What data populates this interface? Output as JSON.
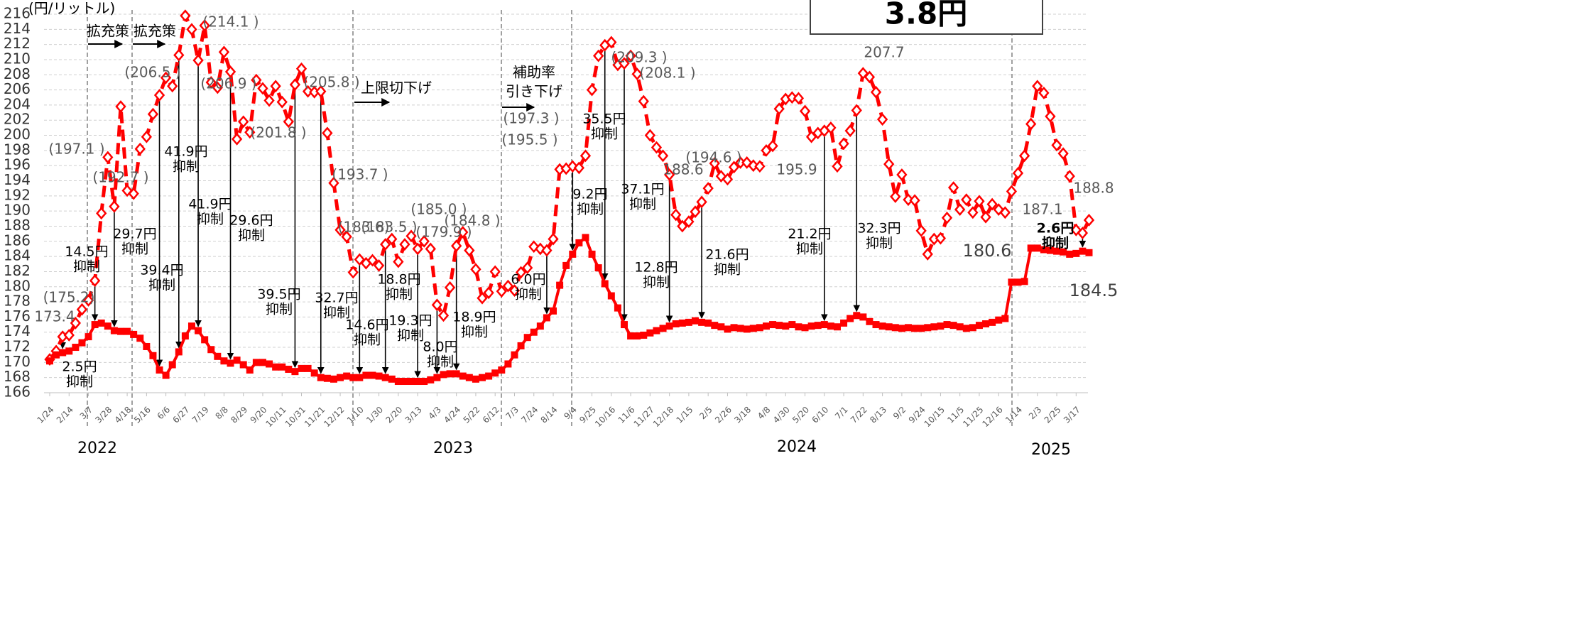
{
  "chart_data": {
    "type": "line",
    "y_label": "(円/リットル)",
    "headline": "3.8円",
    "ylim": [
      166,
      216
    ],
    "yticks": [
      166,
      168,
      170,
      172,
      174,
      176,
      178,
      180,
      182,
      184,
      186,
      188,
      190,
      192,
      194,
      196,
      198,
      200,
      202,
      204,
      206,
      208,
      210,
      212,
      214,
      216
    ],
    "grid": true,
    "categories": [
      "1/24",
      null,
      null,
      "2/14",
      null,
      null,
      "3/7",
      null,
      null,
      "3/28",
      null,
      null,
      "4/18",
      null,
      null,
      "5/16",
      null,
      null,
      "6/6",
      null,
      null,
      "6/27",
      null,
      null,
      "7/19",
      null,
      null,
      "8/8",
      null,
      null,
      "8/29",
      null,
      null,
      "9/20",
      null,
      null,
      "10/11",
      null,
      null,
      "10/31",
      null,
      null,
      "11/21",
      null,
      null,
      "12/12",
      null,
      null,
      "1/10",
      null,
      null,
      "1/30",
      null,
      null,
      "2/20",
      null,
      null,
      "3/13",
      null,
      null,
      "4/3",
      null,
      null,
      "4/24",
      null,
      null,
      "5/22",
      null,
      null,
      "6/12",
      null,
      null,
      "7/3",
      null,
      null,
      "7/24",
      null,
      null,
      "8/14",
      null,
      null,
      "9/4",
      null,
      null,
      "9/25",
      null,
      null,
      "10/16",
      null,
      null,
      "11/6",
      null,
      null,
      "11/27",
      null,
      null,
      "12/18",
      null,
      null,
      "1/15",
      null,
      null,
      "2/5",
      null,
      null,
      "2/26",
      null,
      null,
      "3/18",
      null,
      null,
      "4/8",
      null,
      null,
      "4/30",
      null,
      null,
      "5/20",
      null,
      null,
      "6/10",
      null,
      null,
      "7/1",
      null,
      null,
      "7/22",
      null,
      null,
      "8/13",
      null,
      null,
      "9/2",
      null,
      null,
      "9/24",
      null,
      null,
      "10/15",
      null,
      null,
      "11/5",
      null,
      null,
      "11/25",
      null,
      null,
      "12/16",
      null,
      null,
      "1/14",
      null,
      null,
      "2/3",
      null,
      null,
      "2/25",
      null,
      null,
      "3/17",
      null,
      null
    ],
    "year_labels": [
      "2022",
      "2023",
      "2024",
      "2025"
    ],
    "series": [
      {
        "color": "#ff0000",
        "marker": "diamond",
        "dashed": true,
        "values": [
          170.4,
          171.5,
          173.4,
          173.6,
          175.2,
          177.0,
          178.2,
          180.8,
          189.7,
          197.1,
          190.6,
          203.8,
          192.7,
          192.3,
          198.2,
          199.8,
          202.8,
          205.3,
          207.6,
          206.5,
          210.6,
          215.8,
          214.0,
          209.9,
          214.5,
          207.0,
          206.3,
          211.0,
          208.4,
          199.5,
          201.8,
          200.4,
          207.3,
          206.2,
          204.6,
          206.5,
          204.4,
          201.8,
          206.7,
          208.8,
          205.8,
          205.7,
          205.8,
          200.3,
          193.7,
          187.5,
          186.6,
          181.9,
          183.6,
          183.1,
          183.5,
          182.8,
          185.6,
          186.3,
          183.3,
          185.6,
          186.7,
          185.0,
          186.0,
          185.0,
          177.6,
          176.2,
          179.9,
          185.4,
          187.2,
          184.8,
          182.3,
          178.5,
          179.2,
          182.0,
          179.4,
          180.1,
          179.5,
          181.9,
          182.5,
          185.3,
          185.0,
          184.8,
          186.3,
          195.5,
          195.6,
          195.9,
          195.7,
          197.3,
          206.0,
          210.5,
          211.9,
          212.3,
          209.3,
          209.5,
          210.5,
          208.1,
          204.5,
          200.0,
          198.4,
          197.3,
          194.8,
          189.5,
          188.0,
          188.6,
          189.9,
          191.2,
          193.0,
          196.3,
          194.6,
          194.2,
          195.8,
          196.4,
          196.4,
          196.0,
          195.9,
          198.0,
          198.6,
          203.5,
          204.8,
          205.0,
          204.9,
          203.2,
          199.8,
          200.3,
          200.6,
          201.0,
          195.9,
          198.9,
          200.6,
          203.3,
          208.2,
          207.7,
          205.7,
          202.1,
          196.2,
          191.9,
          194.8,
          191.5,
          191.4,
          187.4,
          184.3,
          186.3,
          186.4,
          189.1,
          193.1,
          190.2,
          191.5,
          189.8,
          191.3,
          189.2,
          190.9,
          190.2,
          189.8,
          192.6,
          195.0,
          197.3,
          201.5,
          206.5,
          205.6,
          202.5,
          198.7,
          197.6,
          194.6,
          187.5,
          187.1,
          188.8
        ]
      },
      {
        "color": "#ff0000",
        "marker": "square",
        "dashed": false,
        "values": [
          170.2,
          171.0,
          171.3,
          171.5,
          172.0,
          172.6,
          173.4,
          175.0,
          175.2,
          174.8,
          174.2,
          174.1,
          174.1,
          173.7,
          173.2,
          172.1,
          170.9,
          169.0,
          168.3,
          169.7,
          171.4,
          173.5,
          174.8,
          174.2,
          173.0,
          171.7,
          170.8,
          170.2,
          169.9,
          170.3,
          169.7,
          169.0,
          170.0,
          170.0,
          169.8,
          169.4,
          169.4,
          169.1,
          168.8,
          169.2,
          169.2,
          168.6,
          168.0,
          167.9,
          167.8,
          168.0,
          168.2,
          168.0,
          168.0,
          168.3,
          168.3,
          168.2,
          168.0,
          167.8,
          167.5,
          167.5,
          167.5,
          167.5,
          167.5,
          167.7,
          168.0,
          168.4,
          168.5,
          168.5,
          168.2,
          168.0,
          167.8,
          168.0,
          168.2,
          168.6,
          169.0,
          169.8,
          171.0,
          172.2,
          173.3,
          174.0,
          174.8,
          175.9,
          176.8,
          180.2,
          182.8,
          184.3,
          185.8,
          186.5,
          184.3,
          182.5,
          180.4,
          178.8,
          177.2,
          175.0,
          173.5,
          173.5,
          173.6,
          173.9,
          174.2,
          174.5,
          174.8,
          175.1,
          175.2,
          175.3,
          175.5,
          175.3,
          175.2,
          174.9,
          174.7,
          174.4,
          174.6,
          174.5,
          174.4,
          174.5,
          174.6,
          174.8,
          175.0,
          174.9,
          174.8,
          175.0,
          174.7,
          174.6,
          174.8,
          174.9,
          175.0,
          174.8,
          174.7,
          175.2,
          175.8,
          176.2,
          176.0,
          175.4,
          175.0,
          174.8,
          174.7,
          174.6,
          174.5,
          174.6,
          174.5,
          174.5,
          174.6,
          174.7,
          174.8,
          175.0,
          174.9,
          174.7,
          174.5,
          174.6,
          174.9,
          175.1,
          175.3,
          175.6,
          175.8,
          180.6,
          180.6,
          180.7,
          185.1,
          185.1,
          184.9,
          184.8,
          184.7,
          184.6,
          184.3,
          184.4,
          184.7,
          184.5
        ]
      }
    ],
    "annotations": [
      {
        "lines": [
          "拡充策"
        ]
      },
      {
        "lines": [
          "拡充策"
        ]
      },
      {
        "lines": [
          "上限切下げ"
        ]
      },
      {
        "lines": [
          "補助率",
          "引き下げ"
        ]
      },
      {
        "lines": [
          "173.4"
        ]
      },
      {
        "lines": [
          "(175.2)"
        ]
      },
      {
        "lines": [
          "(197.1 )"
        ]
      },
      {
        "lines": [
          "(192.7 )"
        ]
      },
      {
        "lines": [
          "(206.5 )"
        ]
      },
      {
        "lines": [
          "(214.1 )"
        ]
      },
      {
        "lines": [
          "(206.9 )"
        ]
      },
      {
        "lines": [
          "(201.8 )"
        ]
      },
      {
        "lines": [
          "(205.8 )"
        ]
      },
      {
        "lines": [
          "(193.7 )"
        ]
      },
      {
        "lines": [
          "(183.6)"
        ]
      },
      {
        "lines": [
          "(183.5 )"
        ]
      },
      {
        "lines": [
          "(185.0 )"
        ]
      },
      {
        "lines": [
          "(179.9 )"
        ]
      },
      {
        "lines": [
          "(184.8 )"
        ]
      },
      {
        "lines": [
          "(197.3 )"
        ]
      },
      {
        "lines": [
          "(195.5 )"
        ]
      },
      {
        "lines": [
          "(209.3 )"
        ]
      },
      {
        "lines": [
          "(208.1 )"
        ]
      },
      {
        "lines": [
          "(194.6 )"
        ]
      },
      {
        "lines": [
          "188.6"
        ]
      },
      {
        "lines": [
          "195.9"
        ]
      },
      {
        "lines": [
          "207.7"
        ]
      },
      {
        "lines": [
          "180.6"
        ]
      },
      {
        "lines": [
          "187.1"
        ]
      },
      {
        "lines": [
          "188.8"
        ]
      },
      {
        "lines": [
          "184.5"
        ]
      },
      {
        "lines": [
          "2.5円",
          "抑制"
        ]
      },
      {
        "lines": [
          "14.5円",
          "抑制"
        ]
      },
      {
        "lines": [
          "29.7円",
          "抑制"
        ]
      },
      {
        "lines": [
          "39.4円",
          "抑制"
        ]
      },
      {
        "lines": [
          "41.9円",
          "抑制"
        ]
      },
      {
        "lines": [
          "41.9円",
          "抑制"
        ]
      },
      {
        "lines": [
          "29.6円",
          "抑制"
        ]
      },
      {
        "lines": [
          "39.5円",
          "抑制"
        ]
      },
      {
        "lines": [
          "32.7円",
          "抑制"
        ]
      },
      {
        "lines": [
          "14.6円",
          "抑制"
        ]
      },
      {
        "lines": [
          "18.8円",
          "抑制"
        ]
      },
      {
        "lines": [
          "19.3円",
          "抑制"
        ]
      },
      {
        "lines": [
          "8.0円",
          "抑制"
        ]
      },
      {
        "lines": [
          "18.9円",
          "抑制"
        ]
      },
      {
        "lines": [
          "6.0円",
          "抑制"
        ]
      },
      {
        "lines": [
          "35.5円",
          "抑制"
        ]
      },
      {
        "lines": [
          "9.2円",
          "抑制"
        ]
      },
      {
        "lines": [
          "37.1円",
          "抑制"
        ]
      },
      {
        "lines": [
          "12.8円",
          "抑制"
        ]
      },
      {
        "lines": [
          "21.6円",
          "抑制"
        ]
      },
      {
        "lines": [
          "21.2円",
          "抑制"
        ]
      },
      {
        "lines": [
          "32.3円",
          "抑制"
        ]
      },
      {
        "lines": [
          "2.6円",
          "抑制"
        ]
      }
    ]
  }
}
